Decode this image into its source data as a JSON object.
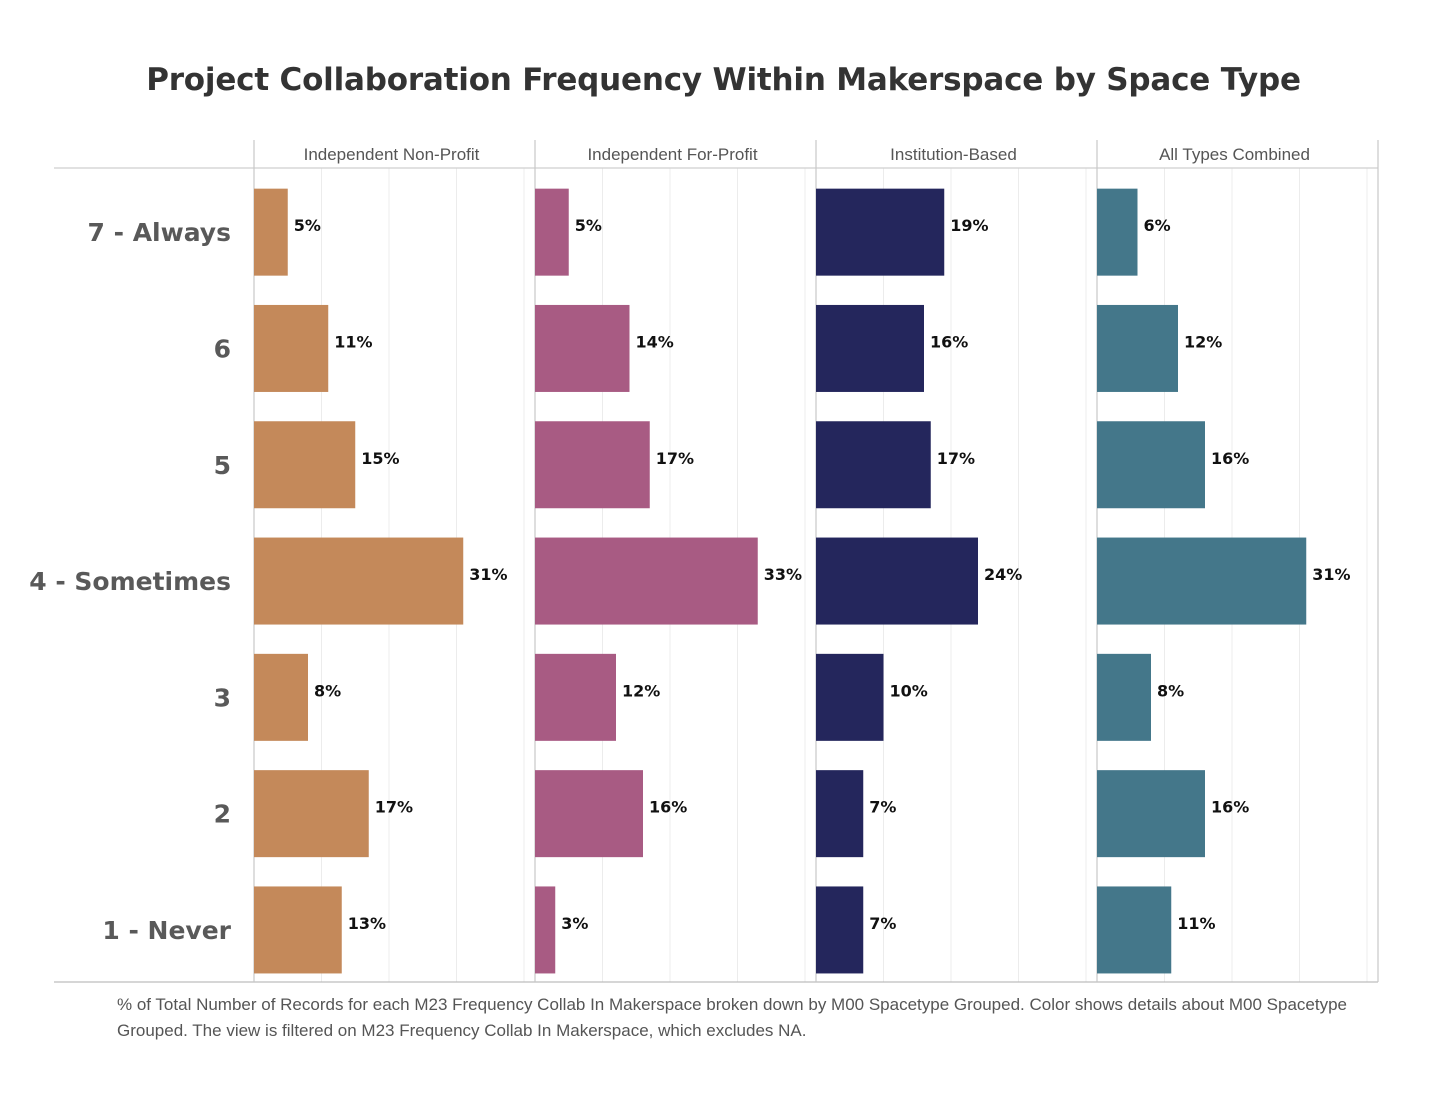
{
  "chart_data": {
    "type": "bar",
    "orientation": "horizontal",
    "title": "Project Collaboration Frequency Within Makerspace by Space Type",
    "categories": [
      "7 - Always",
      "6",
      "5",
      "4 - Sometimes",
      "3",
      "2",
      "1 - Never"
    ],
    "series": [
      {
        "name": "Independent Non-Profit",
        "color": "#c4895a",
        "values": [
          5,
          11,
          15,
          31,
          8,
          17,
          13
        ],
        "labels": [
          "5%",
          "11%",
          "15%",
          "31%",
          "8%",
          "17%",
          "13%"
        ]
      },
      {
        "name": "Independent For-Profit",
        "color": "#a85b83",
        "values": [
          5,
          14,
          17,
          33,
          12,
          16,
          3
        ],
        "labels": [
          "5%",
          "14%",
          "17%",
          "33%",
          "12%",
          "16%",
          "3%"
        ]
      },
      {
        "name": "Institution-Based",
        "color": "#24265c",
        "values": [
          19,
          16,
          17,
          24,
          10,
          7,
          7
        ],
        "labels": [
          "19%",
          "16%",
          "17%",
          "24%",
          "10%",
          "7%",
          "7%"
        ]
      },
      {
        "name": "All Types Combined",
        "color": "#44778a",
        "values": [
          6,
          12,
          16,
          31,
          8,
          16,
          11
        ],
        "labels": [
          "6%",
          "12%",
          "16%",
          "31%",
          "8%",
          "16%",
          "11%"
        ]
      }
    ],
    "layout": "small multiples, one panel per series",
    "xlim": [
      0,
      40
    ],
    "grid": true,
    "legend": "none"
  },
  "footnote": "% of Total Number of Records for each M23 Frequency Collab In Makerspace broken down by M00 Spacetype Grouped.  Color shows details about M00 Spacetype Grouped. The view is filtered on M23 Frequency Collab In Makerspace, which excludes NA."
}
